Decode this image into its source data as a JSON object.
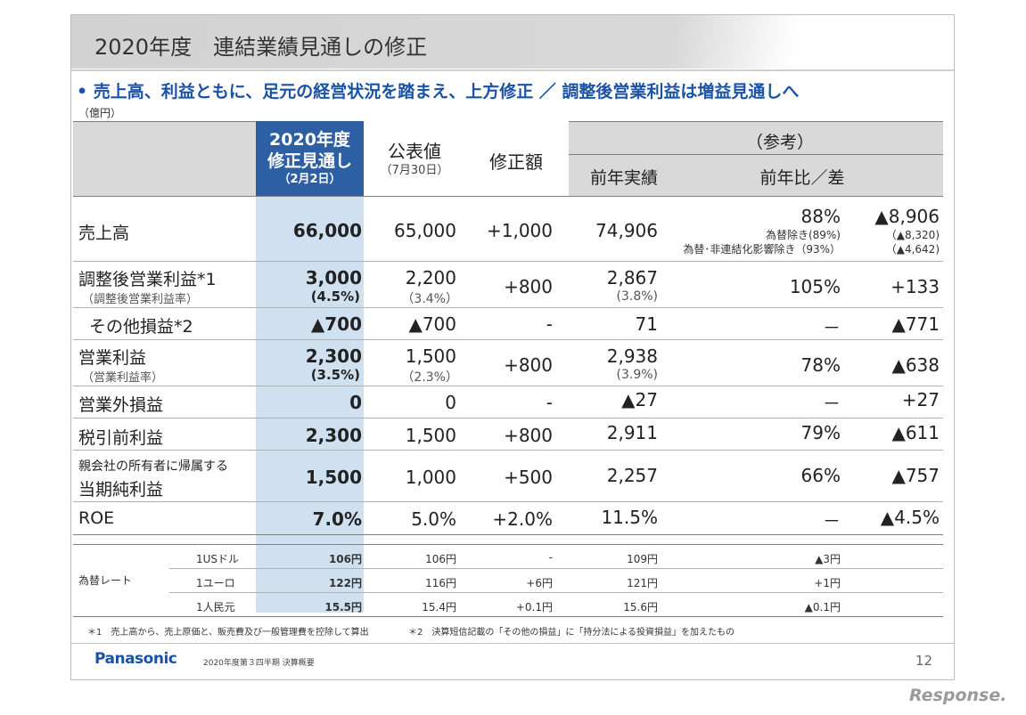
{
  "title": "2020年度　連結業績見通しの修正",
  "headline": "•  売上高、利益ともに、足元の経営状況を踏まえ、上方修正  ／  調整後営業利益は増益見通しへ",
  "unit": "（億円）",
  "header": {
    "forecast": [
      "2020年度",
      "修正見通し",
      "（2月2日）"
    ],
    "published": [
      "公表値",
      "（7月30日）"
    ],
    "revision": "修正額",
    "reference": "（参考）",
    "prev_actual": "前年実績",
    "yoy": "前年比／差"
  },
  "rows": [
    {
      "label": "売上高",
      "sub": "",
      "forecast": "66,000",
      "forecast_sub": "",
      "published": "65,000",
      "published_sub": "",
      "revision": "+1,000",
      "prev": "74,906",
      "prev_sub": "",
      "ratio": "88%",
      "ratio_notes": [
        "為替除き(89%)",
        "為替･非連結化影響除き（93%）"
      ],
      "diff": "▲8,906",
      "diff_notes": [
        "（▲8,320)",
        "（▲4,642)"
      ]
    },
    {
      "label": "調整後営業利益*1",
      "sub": "（調整後営業利益率）",
      "forecast": "3,000",
      "forecast_sub": "(4.5%)",
      "published": "2,200",
      "published_sub": "（3.4%）",
      "revision": "+800",
      "prev": "2,867",
      "prev_sub": "(3.8%)",
      "ratio": "105%",
      "diff": "+133"
    },
    {
      "label": "その他損益*2",
      "sub": "",
      "forecast": "▲700",
      "published": "▲700",
      "revision": "-",
      "prev": "71",
      "ratio": "－",
      "diff": "▲771"
    },
    {
      "label": "営業利益",
      "sub": "（営業利益率）",
      "forecast": "2,300",
      "forecast_sub": "(3.5%)",
      "published": "1,500",
      "published_sub": "（2.3%）",
      "revision": "+800",
      "prev": "2,938",
      "prev_sub": "(3.9%)",
      "ratio": "78%",
      "diff": "▲638"
    },
    {
      "label": "営業外損益",
      "forecast": "0",
      "published": "0",
      "revision": "-",
      "prev": "▲27",
      "ratio": "－",
      "diff": "+27"
    },
    {
      "label": "税引前利益",
      "forecast": "2,300",
      "published": "1,500",
      "revision": "+800",
      "prev": "2,911",
      "ratio": "79%",
      "diff": "▲611"
    },
    {
      "label_top": "親会社の所有者に帰属する",
      "label": "当期純利益",
      "forecast": "1,500",
      "published": "1,000",
      "revision": "+500",
      "prev": "2,257",
      "ratio": "66%",
      "diff": "▲757"
    },
    {
      "label": "ROE",
      "forecast": "7.0%",
      "published": "5.0%",
      "revision": "+2.0%",
      "prev": "11.5%",
      "ratio": "－",
      "diff": "▲4.5%"
    }
  ],
  "fx": {
    "label": "為替レート",
    "rows": [
      {
        "currency": "1USドル",
        "forecast": "106円",
        "published": "106円",
        "revision": "-",
        "prev": "109円",
        "diff": "▲3円"
      },
      {
        "currency": "1ユーロ",
        "forecast": "122円",
        "published": "116円",
        "revision": "+6円",
        "prev": "121円",
        "diff": "+1円"
      },
      {
        "currency": "1人民元",
        "forecast": "15.5円",
        "published": "15.4円",
        "revision": "+0.1円",
        "prev": "15.6円",
        "diff": "▲0.1円"
      }
    ]
  },
  "footnote1": "＊1　売上高から、売上原価と、販売費及び一般管理費を控除して算出",
  "footnote2": "＊2　決算短信記載の「その他の損益」に「持分法による投資損益」を加えたもの",
  "footer": {
    "logo": "Panasonic",
    "text": "2020年度第３四半期 決算概要",
    "page": "12"
  },
  "watermark": "Response."
}
